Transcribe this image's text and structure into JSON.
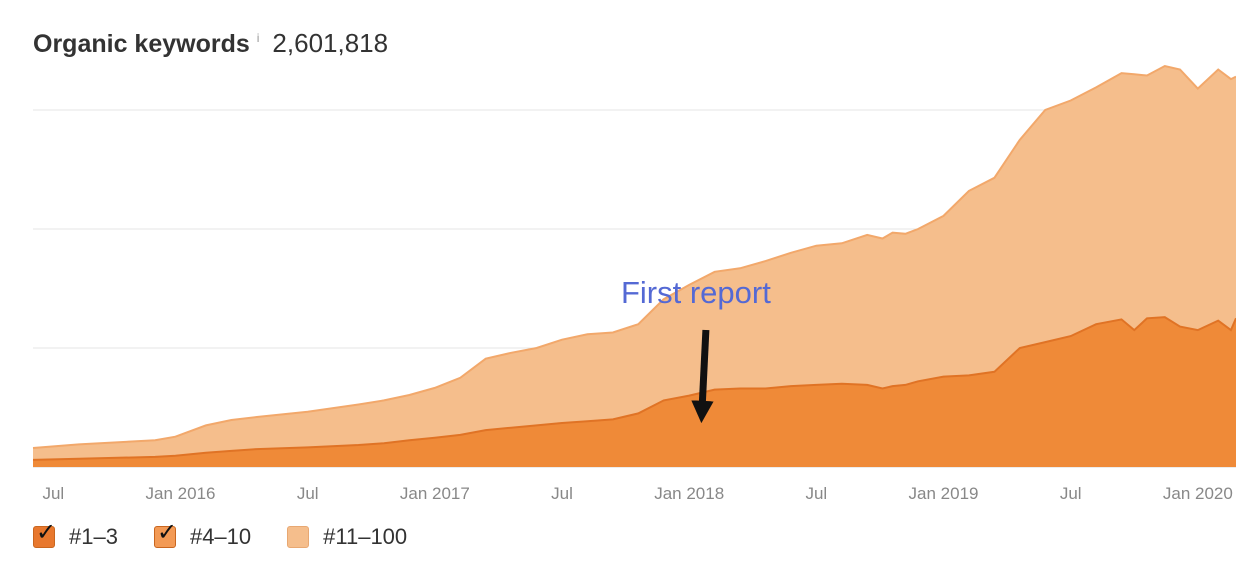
{
  "header": {
    "title": "Organic keywords",
    "info_icon": "i",
    "total": "2,601,818"
  },
  "annotation": {
    "text": "First report",
    "color": "#5469d4",
    "at_x": 2018.05
  },
  "legend": {
    "items": [
      {
        "label": "#1–3",
        "checked": true,
        "color": "#e8782e"
      },
      {
        "label": "#4–10",
        "checked": true,
        "color": "#f39a55"
      },
      {
        "label": "#11–100",
        "checked": false,
        "color": "#f5be8c"
      }
    ]
  },
  "chart_data": {
    "type": "area",
    "stacked": true,
    "x_tick_labels": [
      {
        "label": "Jul",
        "x": 2015.5
      },
      {
        "label": "Jan 2016",
        "x": 2016.0
      },
      {
        "label": "Jul",
        "x": 2016.5
      },
      {
        "label": "Jan 2017",
        "x": 2017.0
      },
      {
        "label": "Jul",
        "x": 2017.5
      },
      {
        "label": "Jan 2018",
        "x": 2018.0
      },
      {
        "label": "Jul",
        "x": 2018.5
      },
      {
        "label": "Jan 2019",
        "x": 2019.0
      },
      {
        "label": "Jul",
        "x": 2019.5
      },
      {
        "label": "Jan 2020",
        "x": 2020.0
      }
    ],
    "xlim": [
      2015.42,
      2020.15
    ],
    "ylim": [
      0,
      3000000
    ],
    "grid_lines": [
      0,
      1000000,
      2000000,
      3000000
    ],
    "y_tick_labels_visible": false,
    "colors": {
      "top": "#f5be8c",
      "bottom": "#ef8a38",
      "bottom_line": "#e07325",
      "top_line": "#f2a86b"
    },
    "x": [
      2015.42,
      2015.6,
      2015.9,
      2015.98,
      2016.1,
      2016.2,
      2016.3,
      2016.5,
      2016.7,
      2016.8,
      2016.9,
      2017.0,
      2017.1,
      2017.2,
      2017.3,
      2017.4,
      2017.5,
      2017.6,
      2017.7,
      2017.8,
      2017.9,
      2018.0,
      2018.1,
      2018.2,
      2018.3,
      2018.4,
      2018.5,
      2018.6,
      2018.7,
      2018.76,
      2018.8,
      2018.85,
      2018.9,
      2019.0,
      2019.1,
      2019.2,
      2019.3,
      2019.4,
      2019.5,
      2019.6,
      2019.7,
      2019.75,
      2019.8,
      2019.87,
      2019.93,
      2020.0,
      2020.08,
      2020.13,
      2020.15
    ],
    "series": [
      {
        "name": "#1–3",
        "values": [
          60000,
          70000,
          85000,
          95000,
          120000,
          135000,
          150000,
          165000,
          185000,
          200000,
          225000,
          245000,
          270000,
          310000,
          330000,
          350000,
          370000,
          385000,
          400000,
          450000,
          560000,
          600000,
          650000,
          660000,
          660000,
          680000,
          690000,
          700000,
          690000,
          660000,
          680000,
          690000,
          720000,
          760000,
          770000,
          800000,
          1000000,
          1050000,
          1100000,
          1200000,
          1240000,
          1150000,
          1250000,
          1260000,
          1180000,
          1150000,
          1230000,
          1150000,
          1250000
        ]
      },
      {
        "name": "#11–100",
        "values": [
          100000,
          120000,
          140000,
          160000,
          230000,
          260000,
          270000,
          300000,
          340000,
          360000,
          380000,
          420000,
          480000,
          600000,
          630000,
          650000,
          700000,
          730000,
          730000,
          750000,
          850000,
          930000,
          990000,
          1010000,
          1070000,
          1120000,
          1170000,
          1180000,
          1260000,
          1260000,
          1290000,
          1270000,
          1280000,
          1350000,
          1550000,
          1630000,
          1750000,
          1950000,
          1980000,
          1990000,
          2070000,
          2150000,
          2040000,
          2110000,
          2160000,
          2030000,
          2110000,
          2110000,
          2030000
        ]
      }
    ]
  }
}
